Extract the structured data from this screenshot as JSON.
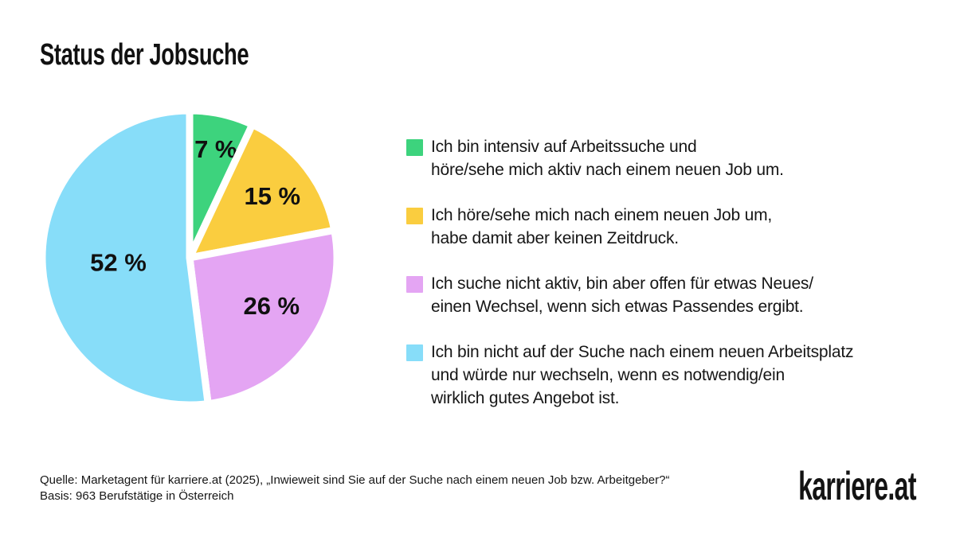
{
  "title": "Status der Jobsuche",
  "chart_data": {
    "type": "pie",
    "title": "Status der Jobsuche",
    "unit": "%",
    "total": 100,
    "start_angle_deg": 0,
    "direction": "clockwise",
    "legend_position": "right",
    "slices": [
      {
        "value": 7,
        "display": "7 %",
        "color": "#3DD37D",
        "label": "Ich bin intensiv auf Arbeitssuche und\nhöre/sehe mich aktiv nach einem neuen Job um."
      },
      {
        "value": 15,
        "display": "15 %",
        "color": "#FACD3F",
        "label": "Ich höre/sehe mich nach einem neuen Job um,\nhabe damit aber keinen Zeitdruck."
      },
      {
        "value": 26,
        "display": "26 %",
        "color": "#E4A5F3",
        "label": "Ich suche nicht aktiv, bin aber offen für etwas Neues/\neinen Wechsel, wenn sich etwas Passendes ergibt."
      },
      {
        "value": 52,
        "display": "52 %",
        "color": "#87DDF9",
        "label": "Ich bin nicht auf der Suche nach einem neuen Arbeitsplatz\nund würde nur wechseln, wenn es notwendig/ein\nwirklich gutes Angebot ist."
      }
    ],
    "slice_separator_color": "#ffffff"
  },
  "footer": {
    "source_line1": "Quelle: Marketagent für karriere.at (2025), „Inwieweit sind Sie auf der Suche nach einem neuen Job bzw. Arbeitgeber?“",
    "source_line2": "Basis: 963 Berufstätige in Österreich",
    "logo_text": "karriere.at"
  }
}
